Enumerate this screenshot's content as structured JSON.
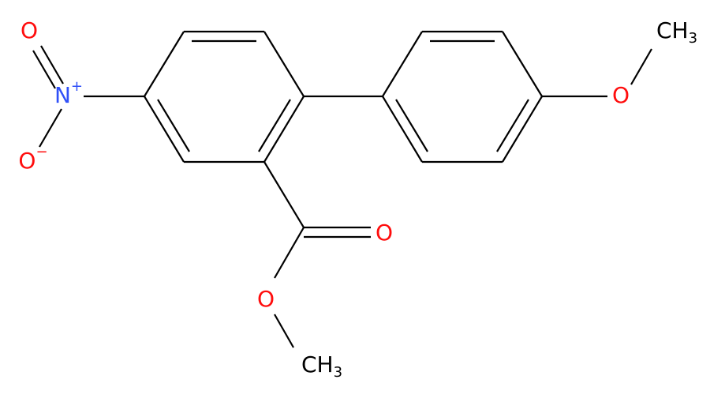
{
  "atoms": [
    {
      "label": "O"
    },
    {
      "label": "N",
      "charge": "+"
    },
    {
      "label": "O",
      "charge": "−"
    },
    {
      "label": "O"
    },
    {
      "label": "O"
    },
    {
      "label": "CH",
      "subscript": "3"
    },
    {
      "label": "O"
    },
    {
      "label": "CH",
      "subscript": "3"
    }
  ]
}
